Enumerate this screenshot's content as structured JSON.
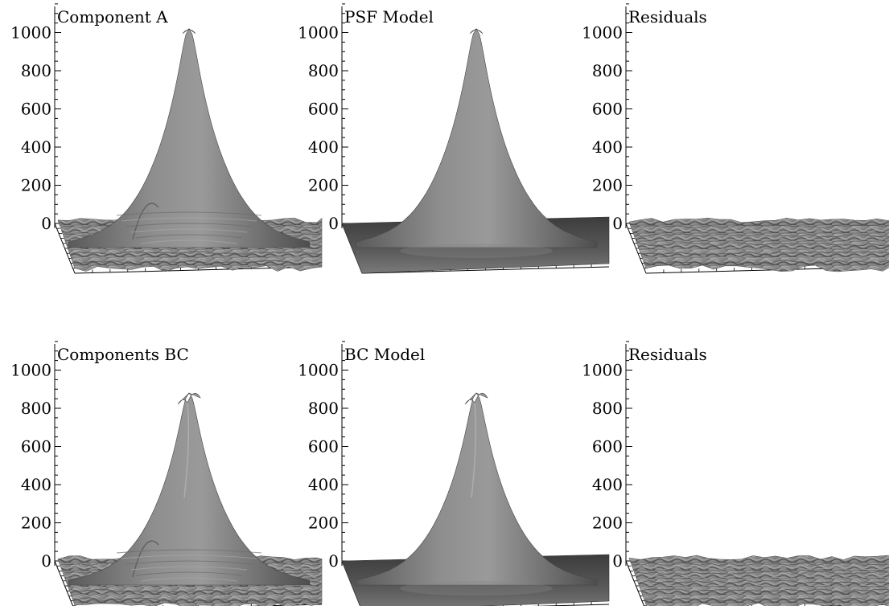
{
  "chart_data": [
    {
      "type": "surface",
      "title": "Component A",
      "zlim": [
        0,
        1150
      ],
      "z_ticks": [
        0,
        200,
        400,
        600,
        800,
        1000
      ],
      "z_tick_labels": [
        "0",
        "200",
        "400",
        "600",
        "800",
        "1000"
      ],
      "peak": 1020,
      "surface": "noisy-data"
    },
    {
      "type": "surface",
      "title": "PSF Model",
      "zlim": [
        0,
        1150
      ],
      "z_ticks": [
        0,
        200,
        400,
        600,
        800,
        1000
      ],
      "z_tick_labels": [
        "0",
        "200",
        "400",
        "600",
        "800",
        "1000"
      ],
      "peak": 1020,
      "surface": "smooth-model"
    },
    {
      "type": "surface",
      "title": "Residuals",
      "zlim": [
        0,
        1150
      ],
      "z_ticks": [
        0,
        200,
        400,
        600,
        800,
        1000
      ],
      "z_tick_labels": [
        "0",
        "200",
        "400",
        "600",
        "800",
        "1000"
      ],
      "peak": 0,
      "surface": "noise-only"
    },
    {
      "type": "surface",
      "title": "Components BC",
      "zlim": [
        0,
        1150
      ],
      "z_ticks": [
        0,
        200,
        400,
        600,
        800,
        1000
      ],
      "z_tick_labels": [
        "0",
        "200",
        "400",
        "600",
        "800",
        "1000"
      ],
      "peak": 880,
      "surface": "noisy-data-double"
    },
    {
      "type": "surface",
      "title": "BC Model",
      "zlim": [
        0,
        1150
      ],
      "z_ticks": [
        0,
        200,
        400,
        600,
        800,
        1000
      ],
      "z_tick_labels": [
        "0",
        "200",
        "400",
        "600",
        "800",
        "1000"
      ],
      "peak": 880,
      "surface": "smooth-model-double"
    },
    {
      "type": "surface",
      "title": "Residuals",
      "zlim": [
        0,
        1150
      ],
      "z_ticks": [
        0,
        200,
        400,
        600,
        800,
        1000
      ],
      "z_tick_labels": [
        "0",
        "200",
        "400",
        "600",
        "800",
        "1000"
      ],
      "peak": 0,
      "surface": "noise-only"
    }
  ]
}
